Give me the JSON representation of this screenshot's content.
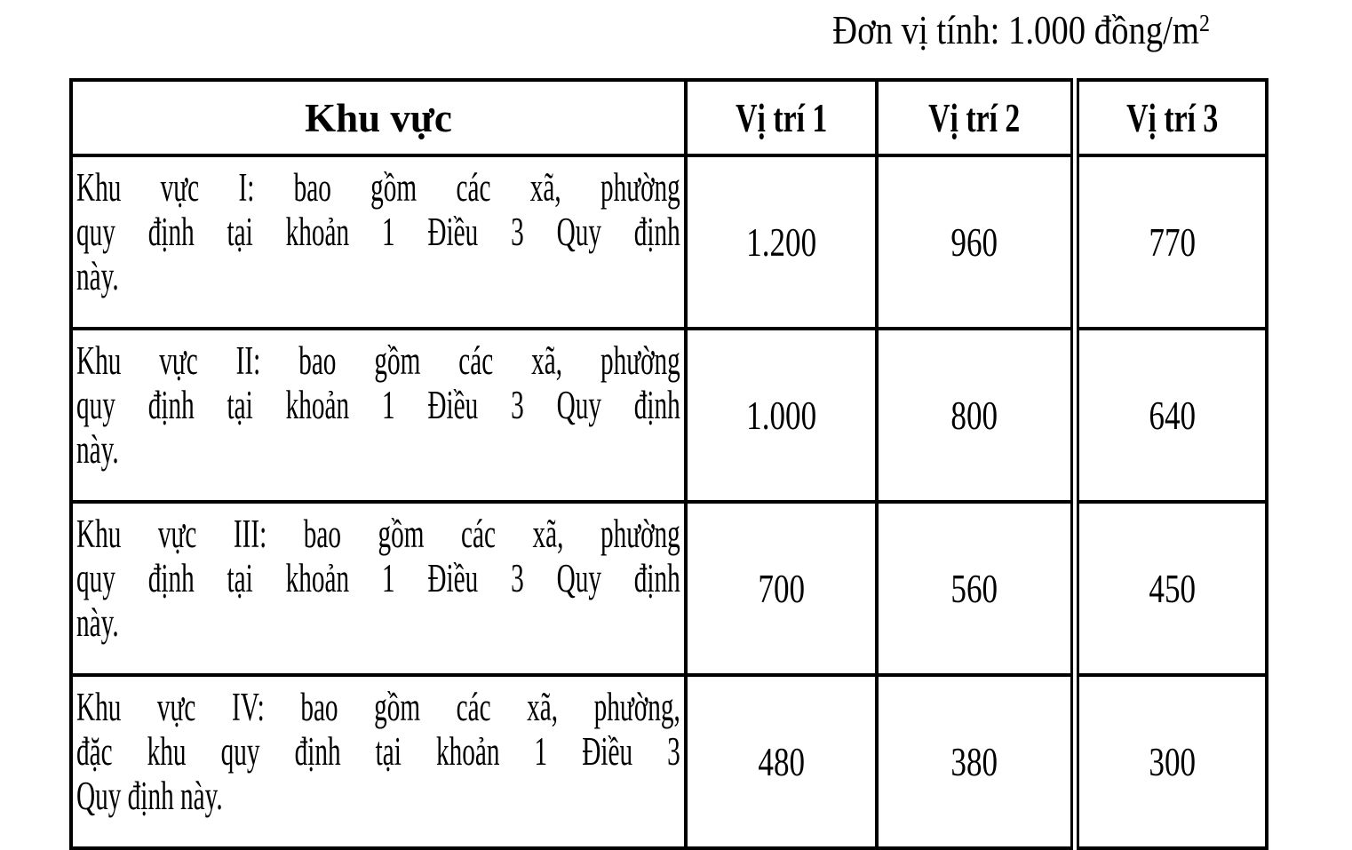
{
  "unit_label": {
    "text": "Đơn vị tính: 1.000 đồng/m",
    "superscript": "2"
  },
  "table": {
    "columns": [
      "Khu vực",
      "Vị trí 1",
      "Vị trí 2",
      "Vị trí 3"
    ],
    "rows": [
      {
        "area_lines": [
          "Khu vực I: bao gồm các xã, phường",
          "quy định tại khoản 1 Điều 3 Quy định",
          "này."
        ],
        "values": [
          "1.200",
          "960",
          "770"
        ]
      },
      {
        "area_lines": [
          "Khu vực II: bao gồm các xã, phường",
          "quy định tại khoản 1 Điều 3 Quy định",
          "này."
        ],
        "values": [
          "1.000",
          "800",
          "640"
        ]
      },
      {
        "area_lines": [
          "Khu vực III: bao gồm các xã, phường",
          "quy định tại khoản 1 Điều 3 Quy định",
          "này."
        ],
        "values": [
          "700",
          "560",
          "450"
        ]
      },
      {
        "area_lines": [
          "Khu vực IV: bao gồm các xã, phường,",
          "đặc khu quy định tại khoản 1 Điều 3",
          "Quy định này."
        ],
        "values": [
          "480",
          "380",
          "300"
        ]
      }
    ]
  },
  "colors": {
    "border": "#000000",
    "background": "#ffffff",
    "text": "#000000"
  }
}
